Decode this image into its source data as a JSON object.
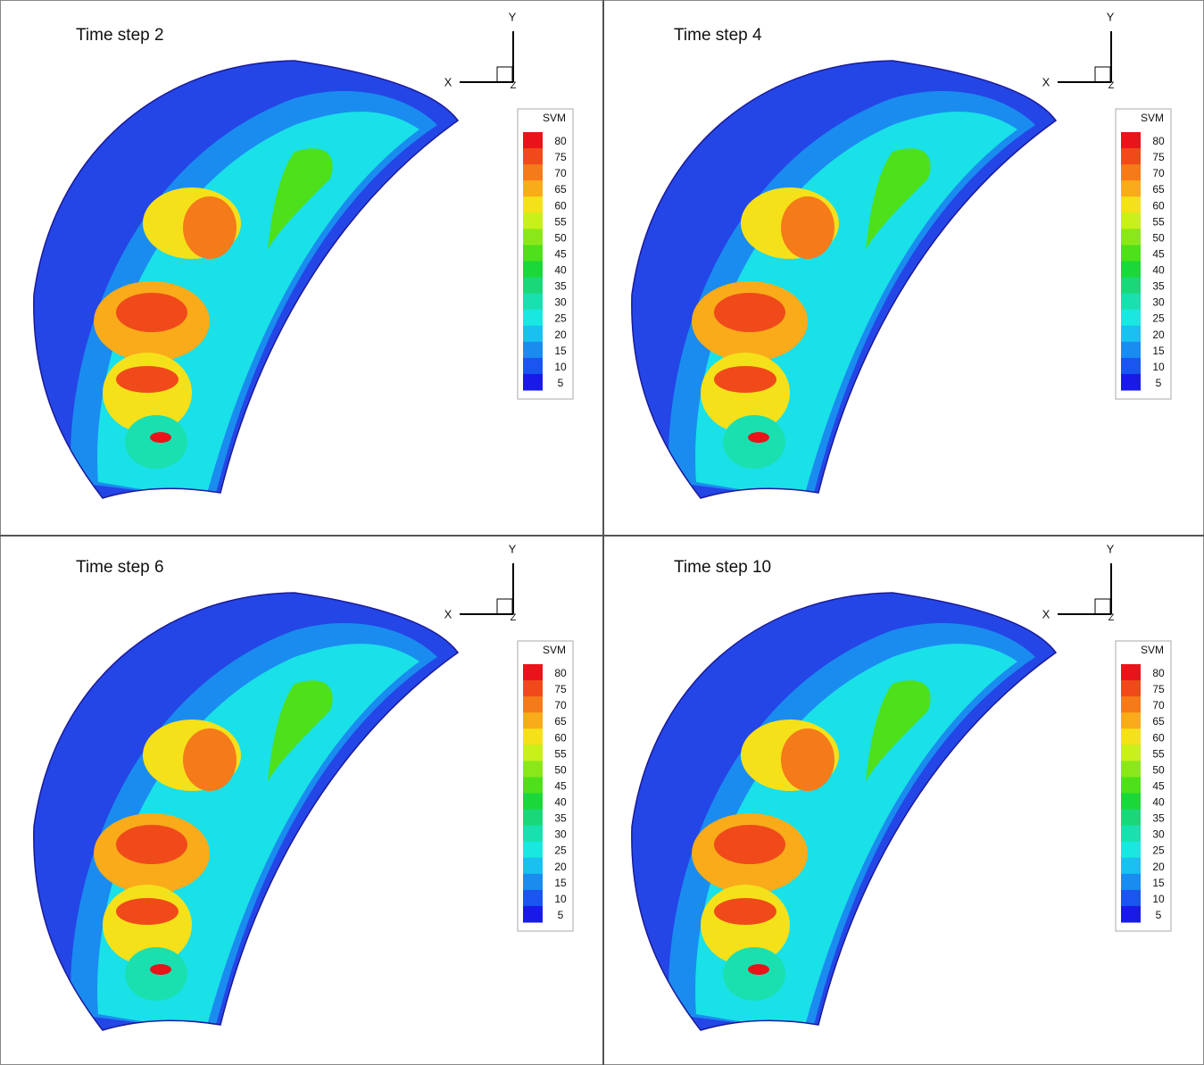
{
  "panels": [
    {
      "title": "Time step 2"
    },
    {
      "title": "Time step 4"
    },
    {
      "title": "Time step 6"
    },
    {
      "title": "Time step 10"
    }
  ],
  "axes": {
    "x": "X",
    "y": "Y",
    "z": "Z"
  },
  "legend": {
    "title": "SVM",
    "levels": [
      80,
      75,
      70,
      65,
      60,
      55,
      50,
      45,
      40,
      35,
      30,
      25,
      20,
      15,
      10,
      5
    ],
    "colors": [
      "#e8141a",
      "#f04a1a",
      "#f57a1a",
      "#f9ab1a",
      "#f5e11a",
      "#c8f01a",
      "#8ae81a",
      "#4ee01a",
      "#1ad83a",
      "#1ad87a",
      "#1ae0b0",
      "#1ae8e0",
      "#1ac0f0",
      "#1a8cf0",
      "#1a55f0",
      "#1a1ae8"
    ]
  }
}
